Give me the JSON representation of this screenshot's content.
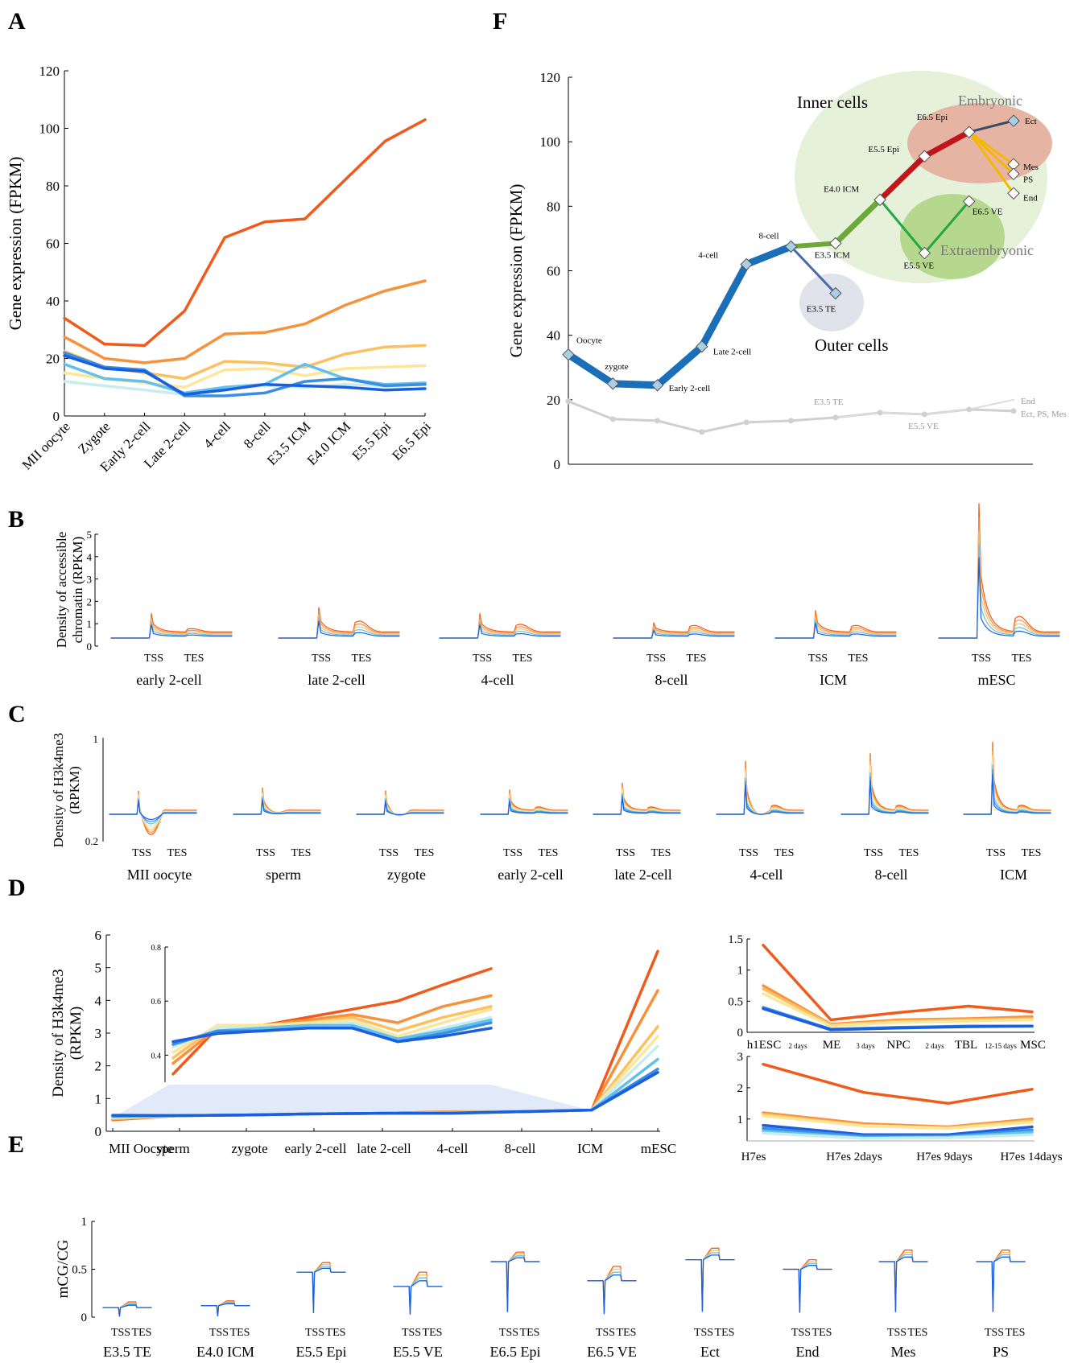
{
  "panel_labels": [
    "A",
    "B",
    "C",
    "D",
    "E",
    "F"
  ],
  "chart_data": [
    {
      "id": "A",
      "type": "line",
      "ylabel": "Gene expression (FPKM)",
      "ylim": [
        0,
        120
      ],
      "yticks": [
        0,
        20,
        40,
        60,
        80,
        100,
        120
      ],
      "categories": [
        "MII oocyte",
        "Zygote",
        "Early 2-cell",
        "Late 2-cell",
        "4-cell",
        "8-cell",
        "E3.5 ICM",
        "E4.0 ICM",
        "E5.5 Epi",
        "E6.5 Epi"
      ],
      "series": [
        {
          "color": "#f05a1a",
          "values": [
            34,
            25,
            24.5,
            36.5,
            62,
            67.5,
            68.5,
            82,
            95.5,
            103
          ]
        },
        {
          "color": "#f7913c",
          "values": [
            27.5,
            20,
            18.5,
            20,
            28.5,
            29,
            32,
            38.5,
            43.5,
            47
          ]
        },
        {
          "color": "#fbc060",
          "values": [
            22.5,
            17,
            15,
            13,
            19,
            18.5,
            17,
            21.5,
            24,
            24.5
          ]
        },
        {
          "color": "#fde69a",
          "values": [
            15,
            13,
            11.5,
            10,
            16,
            16.5,
            14,
            16.5,
            17,
            17.5
          ]
        },
        {
          "color": "#c9ecf0",
          "values": [
            12,
            10.5,
            9,
            7.5,
            9.5,
            10.5,
            10,
            11,
            10.5,
            11
          ]
        },
        {
          "color": "#62c0ea",
          "values": [
            18,
            13,
            12,
            8,
            10,
            11,
            18,
            13,
            11,
            11.5
          ]
        },
        {
          "color": "#3a8fe0",
          "values": [
            22,
            17,
            16,
            7,
            7,
            8,
            12,
            13,
            10.5,
            11
          ]
        },
        {
          "color": "#1a5fe0",
          "values": [
            21,
            16.5,
            15.5,
            7.5,
            9,
            11,
            10.5,
            10,
            9,
            9.5
          ]
        }
      ]
    },
    {
      "id": "F",
      "type": "line",
      "ylabel": "Gene expression (FPKM)",
      "ylim": [
        0,
        120
      ],
      "yticks": [
        0,
        20,
        40,
        60,
        80,
        100,
        120
      ],
      "region_labels": [
        "Inner cells",
        "Outer cells",
        "Embryonic",
        "Extraembryonic"
      ],
      "points": [
        {
          "label": "Oocyte",
          "x": 0,
          "y": 34
        },
        {
          "label": "zygote",
          "x": 1,
          "y": 25
        },
        {
          "label": "Early 2-cell",
          "x": 2,
          "y": 24.5
        },
        {
          "label": "Late 2-cell",
          "x": 3,
          "y": 36.5
        },
        {
          "label": "4-cell",
          "x": 4,
          "y": 62
        },
        {
          "label": "8-cell",
          "x": 5,
          "y": 67.5
        },
        {
          "label": "E3.5 ICM",
          "x": 6,
          "y": 68.5
        },
        {
          "label": "E3.5 TE",
          "x": 6,
          "y": 53
        },
        {
          "label": "E4.0 ICM",
          "x": 7,
          "y": 82
        },
        {
          "label": "E5.5 Epi",
          "x": 8,
          "y": 95.5
        },
        {
          "label": "E5.5 VE",
          "x": 8,
          "y": 65.5
        },
        {
          "label": "E6.5 Epi",
          "x": 9,
          "y": 103
        },
        {
          "label": "E6.5 VE",
          "x": 9,
          "y": 81.5
        },
        {
          "label": "Ect",
          "x": 10,
          "y": 106.5
        },
        {
          "label": "Mes",
          "x": 10,
          "y": 93
        },
        {
          "label": "PS",
          "x": 10,
          "y": 90
        },
        {
          "label": "End",
          "x": 10,
          "y": 84
        }
      ],
      "background_series_labels": [
        "E3.5 TE",
        "E5.5 VE",
        "End",
        "Ect, PS, Mes"
      ],
      "background_values": [
        19.5,
        14,
        13.5,
        10,
        13,
        13.5,
        14.5,
        16,
        15.5,
        17,
        16.5
      ]
    },
    {
      "id": "B",
      "type": "line",
      "ylabel": "Density of accessible chromatin (RPKM)",
      "ylim": [
        0,
        5
      ],
      "yticks": [
        0,
        1,
        2,
        3,
        4,
        5
      ],
      "tick_labels": [
        "TSS",
        "TES"
      ],
      "facets": [
        "early 2-cell",
        "late 2-cell",
        "4-cell",
        "8-cell",
        "ICM",
        "mESC"
      ]
    },
    {
      "id": "C",
      "type": "line",
      "ylabel": "Density of H3k4me3 (RPKM)",
      "yticks": [
        0.2,
        1
      ],
      "tick_labels": [
        "TSS",
        "TES"
      ],
      "facets": [
        "MII oocyte",
        "sperm",
        "zygote",
        "early 2-cell",
        "late 2-cell",
        "4-cell",
        "8-cell",
        "ICM"
      ]
    },
    {
      "id": "D",
      "type": "line",
      "ylabel": "Density of H3k4me3 (RPKM)",
      "ylim": [
        0,
        6
      ],
      "yticks": [
        0,
        1,
        2,
        3,
        4,
        5,
        6
      ],
      "categories": [
        "MII Oocyte",
        "sperm",
        "zygote",
        "early 2-cell",
        "late 2-cell",
        "4-cell",
        "8-cell",
        "ICM",
        "mESC"
      ],
      "inset_yticks": [
        0.4,
        0.6,
        0.8
      ],
      "right_top": {
        "categories": [
          "h1ESC",
          "ME",
          "NPC",
          "TBL",
          "MSC"
        ],
        "gaps": [
          "2 days",
          "3 days",
          "2 days",
          "12-15 days"
        ],
        "yticks": [
          0,
          0.5,
          1,
          1.5
        ]
      },
      "right_bottom": {
        "categories": [
          "H7es",
          "H7es 2days",
          "H7es 9days",
          "H7es 14days"
        ],
        "yticks": [
          1,
          2,
          3
        ]
      }
    },
    {
      "id": "E",
      "type": "line",
      "ylabel": "mCG/CG",
      "ylim": [
        0,
        1
      ],
      "yticks": [
        0,
        0.5,
        1
      ],
      "tick_labels": [
        "TSS",
        "TES"
      ],
      "facets": [
        "E3.5 TE",
        "E4.0 ICM",
        "E5.5 Epi",
        "E5.5 VE",
        "E6.5 Epi",
        "E6.5 VE",
        "Ect",
        "End",
        "Mes",
        "PS"
      ]
    }
  ]
}
